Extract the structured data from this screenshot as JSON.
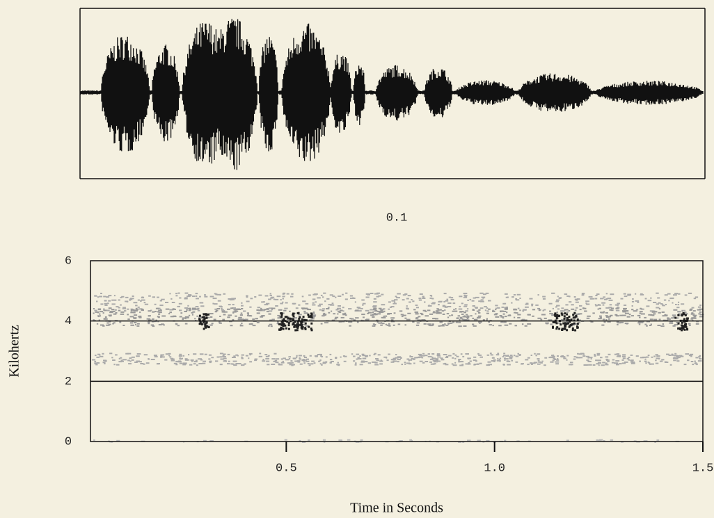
{
  "chart_data": {
    "type": "spectrogram",
    "scale_label": "0.1",
    "ylabel": "Kilohertz",
    "xlabel": "Time in Seconds",
    "ylim": [
      0,
      6
    ],
    "yticks": [
      0,
      2,
      4,
      6
    ],
    "xlim": [
      0.03,
      1.5
    ],
    "xticks": [
      0.5,
      {
        "value": 1.0,
        "label": "1.0"
      },
      1.5
    ],
    "grid": true
  }
}
